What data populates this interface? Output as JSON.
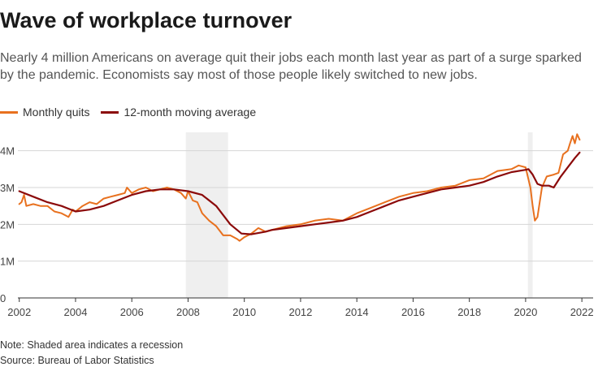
{
  "header": {
    "title": "Wave of workplace turnover",
    "subtitle": "Nearly 4 million Americans on average quit their jobs each month last year as part of a surge sparked by the pandemic. Economists say most of those people likely switched to new jobs."
  },
  "footer": {
    "note": "Note: Shaded area indicates a recession",
    "source": "Source: Bureau of Labor Statistics"
  },
  "colors": {
    "monthly": "#e8711f",
    "average": "#8b0a0a",
    "recession": "#efefef",
    "grid": "#d6d6d6",
    "axis": "#333333"
  },
  "chart_data": {
    "type": "line",
    "title": "Wave of workplace turnover",
    "xlabel": "",
    "ylabel": "",
    "xlim": [
      2001.95,
      2022.4
    ],
    "ylim": [
      0,
      4.5
    ],
    "y_ticks": [
      0,
      1,
      2,
      3,
      4
    ],
    "y_tick_labels": [
      "0",
      "1M",
      "2M",
      "3M",
      "4M"
    ],
    "x_ticks": [
      2002,
      2004,
      2006,
      2008,
      2010,
      2012,
      2014,
      2016,
      2018,
      2020,
      2022
    ],
    "x_tick_labels": [
      "2002",
      "2004",
      "2006",
      "2008",
      "2010",
      "2012",
      "2014",
      "2016",
      "2018",
      "2020",
      "2022"
    ],
    "grid": true,
    "legend": "top-left",
    "recessions": [
      [
        2007.92,
        2009.42
      ],
      [
        2020.08,
        2020.25
      ]
    ],
    "series": [
      {
        "name": "Monthly quits",
        "x": [
          2002.0,
          2002.08,
          2002.17,
          2002.25,
          2002.5,
          2002.75,
          2003.0,
          2003.25,
          2003.5,
          2003.75,
          2003.9,
          2004.0,
          2004.25,
          2004.5,
          2004.75,
          2005.0,
          2005.25,
          2005.5,
          2005.75,
          2005.83,
          2006.0,
          2006.25,
          2006.5,
          2006.75,
          2007.0,
          2007.25,
          2007.5,
          2007.75,
          2007.92,
          2008.0,
          2008.17,
          2008.33,
          2008.5,
          2008.75,
          2009.0,
          2009.25,
          2009.5,
          2009.75,
          2009.83,
          2010.0,
          2010.25,
          2010.5,
          2010.75,
          2011.0,
          2011.5,
          2012.0,
          2012.5,
          2013.0,
          2013.5,
          2014.0,
          2014.5,
          2015.0,
          2015.5,
          2016.0,
          2016.5,
          2017.0,
          2017.5,
          2018.0,
          2018.5,
          2019.0,
          2019.5,
          2019.75,
          2020.0,
          2020.17,
          2020.25,
          2020.33,
          2020.42,
          2020.58,
          2020.75,
          2021.0,
          2021.17,
          2021.33,
          2021.5,
          2021.58,
          2021.67,
          2021.75,
          2021.83,
          2021.92
        ],
        "values": [
          2.55,
          2.6,
          2.8,
          2.5,
          2.55,
          2.5,
          2.5,
          2.35,
          2.3,
          2.2,
          2.4,
          2.35,
          2.5,
          2.6,
          2.55,
          2.7,
          2.75,
          2.8,
          2.85,
          3.0,
          2.85,
          2.95,
          3.0,
          2.9,
          2.95,
          3.0,
          2.95,
          2.85,
          2.7,
          2.9,
          2.65,
          2.6,
          2.3,
          2.1,
          1.95,
          1.7,
          1.7,
          1.6,
          1.55,
          1.65,
          1.75,
          1.9,
          1.8,
          1.85,
          1.95,
          2.0,
          2.1,
          2.15,
          2.1,
          2.3,
          2.45,
          2.6,
          2.75,
          2.85,
          2.9,
          3.0,
          3.05,
          3.2,
          3.25,
          3.45,
          3.5,
          3.6,
          3.55,
          3.0,
          2.5,
          2.1,
          2.2,
          3.0,
          3.3,
          3.35,
          3.4,
          3.9,
          4.0,
          4.2,
          4.4,
          4.2,
          4.45,
          4.3
        ]
      },
      {
        "name": "12-month moving average",
        "x": [
          2002.0,
          2002.5,
          2003.0,
          2003.5,
          2004.0,
          2004.5,
          2005.0,
          2005.5,
          2006.0,
          2006.5,
          2007.0,
          2007.5,
          2008.0,
          2008.5,
          2009.0,
          2009.5,
          2009.9,
          2010.25,
          2010.75,
          2011.0,
          2011.5,
          2012.0,
          2012.5,
          2013.0,
          2013.5,
          2014.0,
          2014.5,
          2015.0,
          2015.5,
          2016.0,
          2016.5,
          2017.0,
          2017.5,
          2018.0,
          2018.5,
          2019.0,
          2019.5,
          2020.0,
          2020.1,
          2020.25,
          2020.42,
          2020.58,
          2020.83,
          2021.0,
          2021.25,
          2021.5,
          2021.75,
          2021.92
        ],
        "values": [
          2.9,
          2.75,
          2.6,
          2.5,
          2.35,
          2.4,
          2.5,
          2.65,
          2.8,
          2.9,
          2.95,
          2.95,
          2.9,
          2.8,
          2.5,
          2.0,
          1.75,
          1.73,
          1.8,
          1.85,
          1.9,
          1.95,
          2.0,
          2.05,
          2.1,
          2.2,
          2.35,
          2.5,
          2.65,
          2.75,
          2.85,
          2.95,
          3.0,
          3.05,
          3.15,
          3.3,
          3.42,
          3.48,
          3.5,
          3.35,
          3.1,
          3.05,
          3.05,
          3.0,
          3.3,
          3.55,
          3.8,
          3.95
        ]
      }
    ]
  }
}
